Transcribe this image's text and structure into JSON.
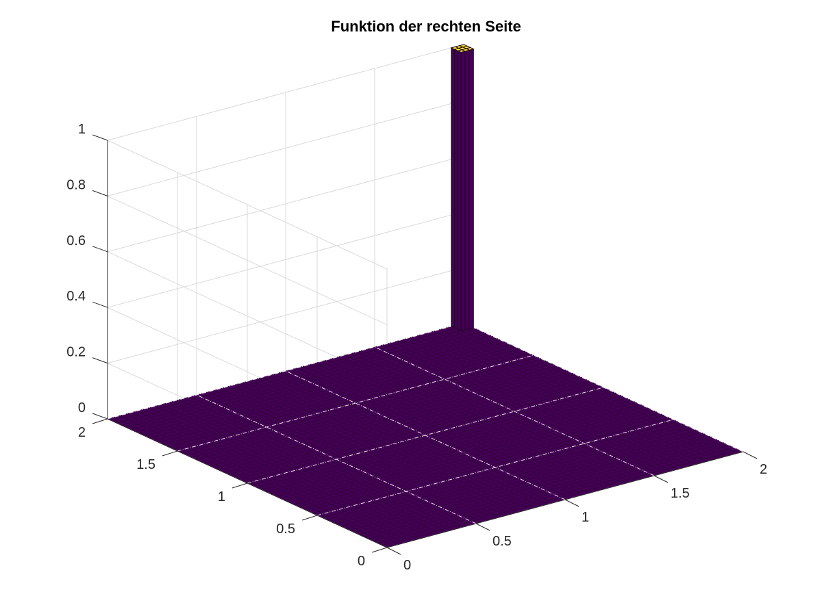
{
  "chart_data": {
    "type": "surface3d",
    "title": "Funktion der rechten Seite",
    "xlabel": "",
    "ylabel": "",
    "zlabel": "",
    "xlim": [
      0,
      2
    ],
    "ylim": [
      0,
      2
    ],
    "zlim": [
      0,
      1
    ],
    "xticks": [
      "0",
      "0.5",
      "1",
      "1.5",
      "2"
    ],
    "yticks": [
      "0",
      "0.5",
      "1",
      "1.5",
      "2"
    ],
    "zticks": [
      "0",
      "0.2",
      "0.4",
      "0.6",
      "0.8",
      "1"
    ],
    "grid": true,
    "colormap": "viridis",
    "colors": {
      "low": "#440154",
      "high": "#fde725"
    },
    "description_values": {
      "base_value": 0,
      "peak_value": 1,
      "peak_x_range": [
        1.93,
        2.0
      ],
      "peak_y_range": [
        1.93,
        2.0
      ]
    }
  }
}
